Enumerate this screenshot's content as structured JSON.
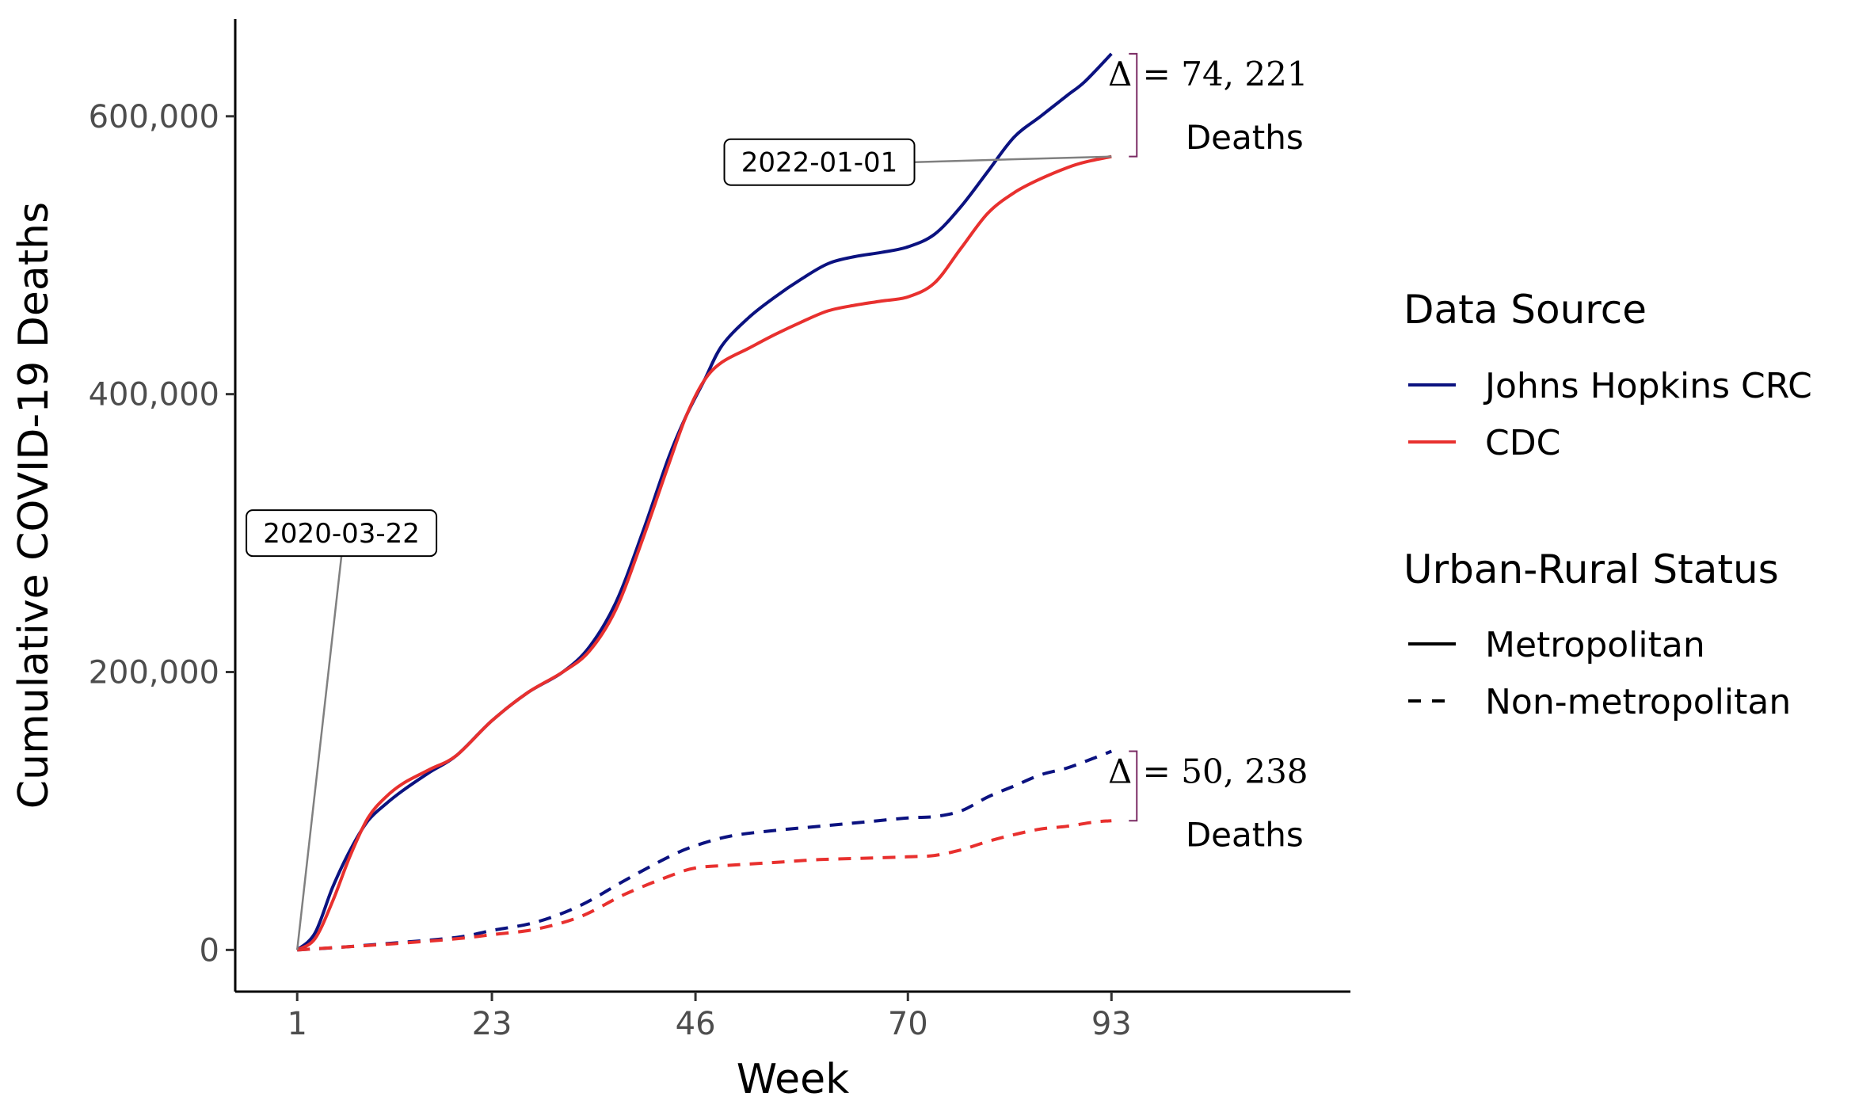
{
  "chart_data": {
    "type": "line",
    "xlabel": "Week",
    "ylabel": "Cumulative COVID-19 Deaths",
    "xlim": [
      -6,
      120
    ],
    "ylim": [
      -30000,
      670000
    ],
    "x_ticks": [
      1,
      23,
      46,
      70,
      93
    ],
    "x_tick_labels": [
      "1",
      "23",
      "46",
      "70",
      "93"
    ],
    "y_ticks": [
      0,
      200000,
      400000,
      600000
    ],
    "y_tick_labels": [
      "0",
      "200,000",
      "400,000",
      "600,000"
    ],
    "grid": false,
    "legends": [
      {
        "title": "Data Source",
        "placement": "right",
        "entries": [
          {
            "label": "Johns Hopkins CRC",
            "color": "#0b1280",
            "style": "solid"
          },
          {
            "label": "CDC",
            "color": "#e8302e",
            "style": "solid"
          }
        ]
      },
      {
        "title": "Urban-Rural Status",
        "placement": "right",
        "entries": [
          {
            "label": "Metropolitan",
            "color": "#000000",
            "style": "solid"
          },
          {
            "label": "Non-metropolitan",
            "color": "#000000",
            "style": "dashed"
          }
        ]
      }
    ],
    "series": [
      {
        "source": "Johns Hopkins CRC",
        "status": "Metropolitan",
        "color": "#0b1280",
        "style": "solid",
        "x": [
          1,
          3,
          5,
          7,
          9,
          11,
          13,
          16,
          19,
          23,
          27,
          31,
          34,
          37,
          40,
          43,
          45,
          47,
          49,
          52,
          55,
          58,
          61,
          64,
          67,
          70,
          73,
          76,
          79,
          82,
          85,
          88,
          90,
          93
        ],
        "y": [
          0,
          12000,
          45000,
          72000,
          93000,
          105000,
          115000,
          128000,
          140000,
          165000,
          185000,
          200000,
          218000,
          250000,
          300000,
          355000,
          385000,
          410000,
          435000,
          455000,
          470000,
          483000,
          494000,
          499000,
          502000,
          506000,
          515000,
          535000,
          560000,
          585000,
          600000,
          615000,
          625000,
          645000
        ]
      },
      {
        "source": "CDC",
        "status": "Metropolitan",
        "color": "#e8302e",
        "style": "solid",
        "x": [
          1,
          3,
          5,
          7,
          9,
          11,
          13,
          16,
          19,
          23,
          27,
          31,
          34,
          37,
          40,
          43,
          45,
          47,
          49,
          52,
          55,
          58,
          61,
          64,
          67,
          70,
          73,
          76,
          79,
          82,
          85,
          88,
          90,
          93
        ],
        "y": [
          0,
          8000,
          35000,
          68000,
          95000,
          110000,
          120000,
          130000,
          140000,
          165000,
          185000,
          200000,
          215000,
          245000,
          295000,
          350000,
          385000,
          410000,
          423000,
          433000,
          443000,
          452000,
          460000,
          464000,
          467000,
          470000,
          480000,
          505000,
          530000,
          545000,
          555000,
          563000,
          567000,
          571000
        ]
      },
      {
        "source": "Johns Hopkins CRC",
        "status": "Non-metropolitan",
        "color": "#0b1280",
        "style": "dashed",
        "x": [
          1,
          6,
          12,
          19,
          23,
          28,
          33,
          38,
          43,
          46,
          50,
          55,
          60,
          65,
          70,
          73,
          76,
          79,
          82,
          85,
          88,
          91,
          93
        ],
        "y": [
          0,
          2000,
          5000,
          9000,
          14000,
          20000,
          32000,
          50000,
          67000,
          75000,
          82000,
          86000,
          89000,
          92000,
          95000,
          96000,
          100000,
          110000,
          118000,
          126000,
          131000,
          138000,
          143000
        ]
      },
      {
        "source": "CDC",
        "status": "Non-metropolitan",
        "color": "#e8302e",
        "style": "dashed",
        "x": [
          1,
          6,
          12,
          19,
          23,
          28,
          33,
          38,
          43,
          46,
          50,
          55,
          60,
          65,
          70,
          73,
          76,
          79,
          82,
          85,
          88,
          91,
          93
        ],
        "y": [
          0,
          2000,
          4500,
          8000,
          11000,
          15000,
          24000,
          40000,
          53000,
          59000,
          61000,
          63000,
          65000,
          66000,
          67000,
          68000,
          72000,
          78000,
          83000,
          87000,
          89000,
          92000,
          93000
        ]
      }
    ],
    "annotations": [
      {
        "label": "2020-03-22",
        "point": [
          1,
          0
        ],
        "box_at": [
          6,
          300000
        ]
      },
      {
        "label": "2022-01-01",
        "point": [
          93,
          571000
        ],
        "box_at": [
          60,
          567000
        ]
      }
    ],
    "brackets": [
      {
        "x": 93,
        "y_top": 645000,
        "y_bottom": 571000,
        "delta_text": "Δ = 74, 221",
        "sub_text": "Deaths"
      },
      {
        "x": 93,
        "y_top": 143000,
        "y_bottom": 93000,
        "delta_text": "Δ = 50, 238",
        "sub_text": "Deaths"
      }
    ]
  }
}
